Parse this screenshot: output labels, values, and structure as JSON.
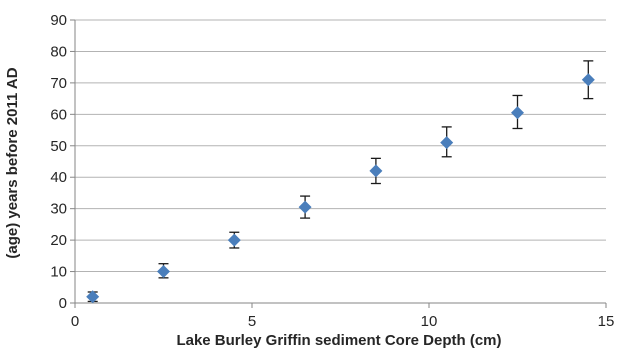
{
  "chart_data": {
    "type": "scatter",
    "xlabel": "Lake Burley Griffin sediment Core Depth (cm)",
    "ylabel": "(age) years before 2011 AD",
    "xlim": [
      0,
      15
    ],
    "ylim": [
      0,
      90
    ],
    "x_ticks": [
      0,
      5,
      10,
      15
    ],
    "y_ticks": [
      0,
      10,
      20,
      30,
      40,
      50,
      60,
      70,
      80,
      90
    ],
    "x_tick_labels": [
      "0",
      "5",
      "10",
      "15"
    ],
    "y_tick_labels": [
      "0",
      "10",
      "20",
      "30",
      "40",
      "50",
      "60",
      "70",
      "80",
      "90"
    ],
    "grid": "horizontal",
    "legend": "none",
    "marker": "diamond",
    "marker_color": "#4a7ebb",
    "errorbar_color": "#1a1a1a",
    "gridline_color": "#b3b3b3",
    "series": [
      {
        "x": [
          0.5,
          2.5,
          4.5,
          6.5,
          8.5,
          10.5,
          12.5,
          14.5
        ],
        "y": [
          2,
          10,
          20,
          30.5,
          42,
          51,
          60.5,
          71
        ],
        "y_err_lower": [
          1.5,
          2,
          2.5,
          3.5,
          4,
          4.5,
          5,
          6
        ],
        "y_err_upper": [
          1.5,
          2.5,
          2.5,
          3.5,
          4,
          5,
          5.5,
          6
        ]
      }
    ]
  }
}
